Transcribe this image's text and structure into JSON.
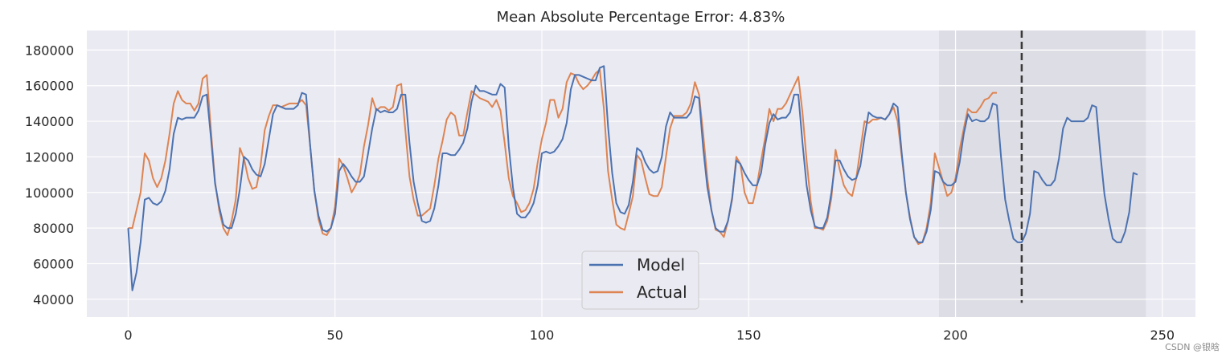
{
  "chart_data": {
    "type": "line",
    "title": "Mean Absolute Percentage Error: 4.83%",
    "xlabel": "",
    "ylabel": "",
    "xlim": [
      -10,
      258
    ],
    "ylim": [
      30000,
      191000
    ],
    "xticks": [
      0,
      50,
      100,
      150,
      200,
      250
    ],
    "yticks": [
      40000,
      60000,
      80000,
      100000,
      120000,
      140000,
      160000,
      180000
    ],
    "grid": true,
    "legend": "bottom-center",
    "shaded_region": [
      196,
      246
    ],
    "vline": {
      "x": 216,
      "y_range": [
        38000,
        191000
      ],
      "style": "dashed"
    },
    "series": [
      {
        "name": "Model",
        "color": "#4c72b0",
        "x_start": 0,
        "values": [
          80000,
          45000,
          55000,
          72000,
          96000,
          97000,
          94000,
          93000,
          95000,
          101000,
          113000,
          133000,
          142000,
          141000,
          142000,
          142000,
          142000,
          146000,
          154000,
          155000,
          131000,
          105000,
          92000,
          82000,
          80000,
          80000,
          88000,
          102000,
          120000,
          118000,
          113000,
          110000,
          109000,
          116000,
          130000,
          144000,
          149000,
          148000,
          147000,
          147000,
          147000,
          149000,
          156000,
          155000,
          126000,
          101000,
          87000,
          79000,
          78000,
          80000,
          88000,
          112000,
          116000,
          113000,
          109000,
          106000,
          106000,
          109000,
          122000,
          136000,
          147000,
          145000,
          146000,
          145000,
          145000,
          147000,
          155000,
          155000,
          128000,
          106000,
          94000,
          84000,
          83000,
          84000,
          91000,
          104000,
          122000,
          122000,
          121000,
          121000,
          124000,
          128000,
          136000,
          151000,
          160000,
          157000,
          157000,
          156000,
          155000,
          155000,
          161000,
          159000,
          126000,
          103000,
          88000,
          86000,
          86000,
          89000,
          94000,
          104000,
          122000,
          123000,
          122000,
          123000,
          126000,
          130000,
          139000,
          158000,
          166000,
          166000,
          165000,
          164000,
          163000,
          163000,
          170000,
          171000,
          137000,
          111000,
          94000,
          89000,
          88000,
          93000,
          106000,
          125000,
          123000,
          117000,
          113000,
          111000,
          112000,
          120000,
          137000,
          145000,
          142000,
          142000,
          142000,
          142000,
          145000,
          154000,
          153000,
          125000,
          103000,
          90000,
          80000,
          78000,
          78000,
          84000,
          97000,
          118000,
          116000,
          111000,
          107000,
          104000,
          104000,
          111000,
          127000,
          139000,
          144000,
          141000,
          142000,
          142000,
          145000,
          155000,
          155000,
          128000,
          104000,
          90000,
          81000,
          80000,
          80000,
          86000,
          100000,
          118000,
          118000,
          113000,
          109000,
          107000,
          108000,
          115000,
          131000,
          145000,
          143000,
          142000,
          142000,
          141000,
          144000,
          150000,
          148000,
          122000,
          100000,
          85000,
          75000,
          72000,
          72000,
          78000,
          90000,
          112000,
          111000,
          106000,
          104000,
          104000,
          106000,
          117000,
          133000,
          144000,
          140000,
          141000,
          140000,
          140000,
          142000,
          150000,
          149000,
          120000,
          96000,
          84000,
          74000,
          72000,
          72000,
          77000,
          88000,
          112000,
          111000,
          107000,
          104000,
          104000,
          107000,
          119000,
          136000,
          142000,
          140000,
          140000,
          140000,
          140000,
          142000,
          149000,
          148000,
          122000,
          99000,
          85000,
          74000,
          72000,
          72000,
          78000,
          89000,
          111000,
          110000
        ]
      },
      {
        "name": "Actual",
        "color": "#dd8452",
        "x_start": 0,
        "values": [
          80000,
          80000,
          90000,
          100000,
          122000,
          118000,
          108000,
          103000,
          108000,
          118000,
          133000,
          150000,
          157000,
          152000,
          150000,
          150000,
          146000,
          150000,
          164000,
          166000,
          135000,
          106000,
          90000,
          80000,
          76000,
          84000,
          96000,
          125000,
          119000,
          108000,
          102000,
          103000,
          115000,
          135000,
          143000,
          149000,
          149000,
          148000,
          149000,
          150000,
          150000,
          150000,
          152000,
          149000,
          126000,
          101000,
          85000,
          77000,
          76000,
          80000,
          92000,
          119000,
          115000,
          108000,
          100000,
          104000,
          110000,
          126000,
          138000,
          153000,
          146000,
          148000,
          148000,
          146000,
          148000,
          160000,
          161000,
          135000,
          109000,
          96000,
          87000,
          87000,
          89000,
          91000,
          104000,
          119000,
          129000,
          141000,
          145000,
          143000,
          132000,
          132000,
          145000,
          157000,
          155000,
          153000,
          152000,
          151000,
          148000,
          152000,
          146000,
          128000,
          108000,
          98000,
          94000,
          89000,
          90000,
          94000,
          102000,
          117000,
          130000,
          139000,
          152000,
          152000,
          142000,
          147000,
          162000,
          167000,
          166000,
          161000,
          158000,
          160000,
          163000,
          167000,
          169000,
          147000,
          112000,
          96000,
          82000,
          80000,
          79000,
          88000,
          98000,
          121000,
          118000,
          108000,
          99000,
          98000,
          98000,
          103000,
          120000,
          136000,
          143000,
          143000,
          143000,
          145000,
          150000,
          162000,
          155000,
          133000,
          108000,
          90000,
          79000,
          78000,
          75000,
          84000,
          96000,
          120000,
          116000,
          100000,
          94000,
          94000,
          104000,
          118000,
          131000,
          147000,
          140000,
          147000,
          147000,
          150000,
          155000,
          160000,
          165000,
          145000,
          118000,
          95000,
          80000,
          80000,
          79000,
          84000,
          97000,
          124000,
          113000,
          104000,
          100000,
          98000,
          108000,
          124000,
          140000,
          139000,
          141000,
          141000,
          142000,
          141000,
          144000,
          148000,
          140000,
          120000,
          100000,
          86000,
          75000,
          71000,
          72000,
          80000,
          94000,
          122000,
          114000,
          106000,
          98000,
          100000,
          108000,
          124000,
          136000,
          147000,
          145000,
          145000,
          148000,
          152000,
          153000,
          156000,
          156000
        ]
      }
    ]
  },
  "watermark": "CSDN @银晗"
}
